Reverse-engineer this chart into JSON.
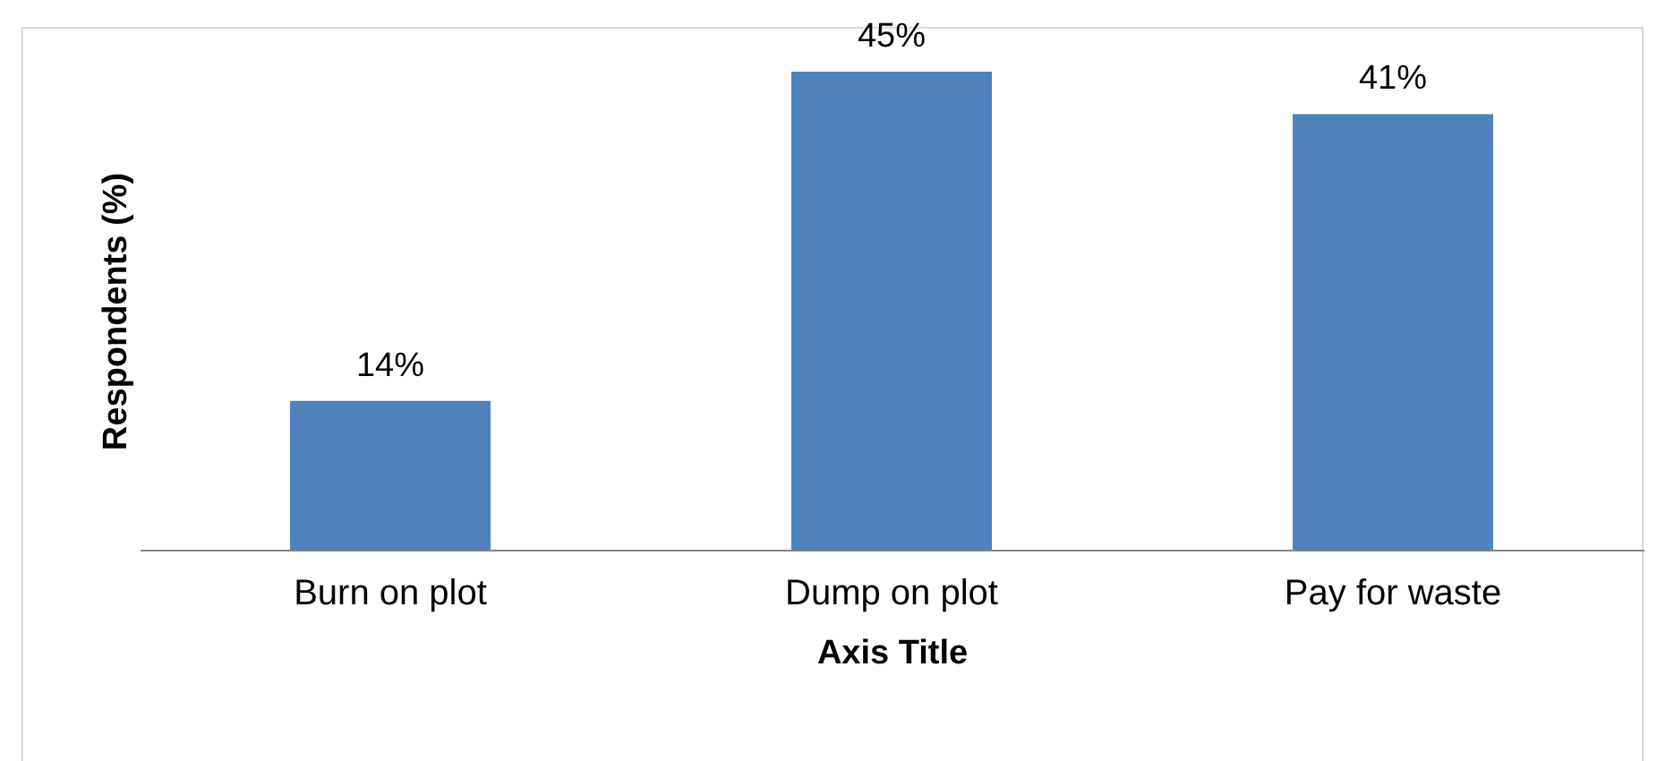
{
  "chart_data": {
    "type": "bar",
    "xlabel": "Axis Title",
    "ylabel": "Respondents (%)",
    "categories": [
      "Burn on plot",
      "Dump on plot",
      "Pay for waste"
    ],
    "values": [
      14,
      45,
      41
    ],
    "value_labels": [
      "14%",
      "45%",
      "41%"
    ],
    "color": "#4f81bd"
  }
}
